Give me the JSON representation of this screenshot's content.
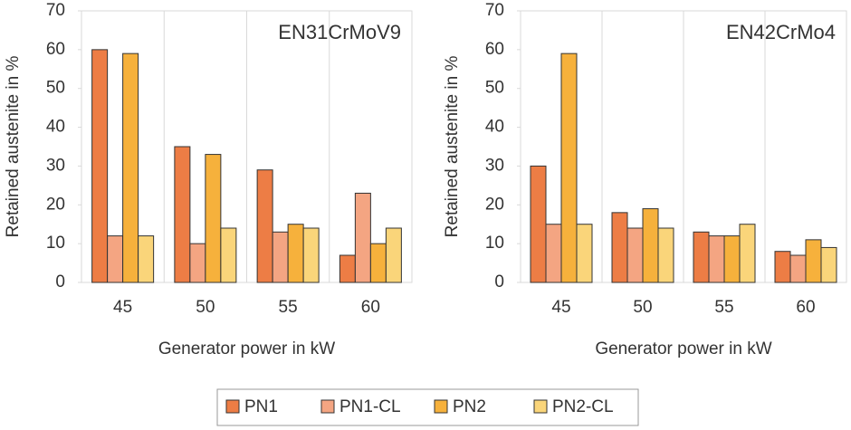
{
  "chart_data": [
    {
      "type": "bar",
      "title": "EN31CrMoV9",
      "x_label": "Generator power in kW",
      "y_label": "Retained austenite in %",
      "categories": [
        "45",
        "50",
        "55",
        "60"
      ],
      "series": [
        {
          "name": "PN1",
          "color": "#ed7d45",
          "values": [
            60,
            35,
            29,
            7
          ]
        },
        {
          "name": "PN1-CL",
          "color": "#f4a582",
          "values": [
            12,
            10,
            13,
            23
          ]
        },
        {
          "name": "PN2",
          "color": "#f6b13c",
          "values": [
            59,
            33,
            15,
            10
          ]
        },
        {
          "name": "PN2-CL",
          "color": "#fad57a",
          "values": [
            12,
            14,
            14,
            14
          ]
        }
      ],
      "ylim": [
        0,
        70
      ],
      "yticks": [
        0,
        10,
        20,
        30,
        40,
        50,
        60,
        70
      ]
    },
    {
      "type": "bar",
      "title": "EN42CrMo4",
      "x_label": "Generator power in kW",
      "y_label": "Retained austenite in %",
      "categories": [
        "45",
        "50",
        "55",
        "60"
      ],
      "series": [
        {
          "name": "PN1",
          "color": "#ed7d45",
          "values": [
            30,
            18,
            13,
            8
          ]
        },
        {
          "name": "PN1-CL",
          "color": "#f4a582",
          "values": [
            15,
            14,
            12,
            7
          ]
        },
        {
          "name": "PN2",
          "color": "#f6b13c",
          "values": [
            59,
            19,
            12,
            11
          ]
        },
        {
          "name": "PN2-CL",
          "color": "#fad57a",
          "values": [
            15,
            14,
            15,
            9
          ]
        }
      ],
      "ylim": [
        0,
        70
      ],
      "yticks": [
        0,
        10,
        20,
        30,
        40,
        50,
        60,
        70
      ]
    }
  ]
}
